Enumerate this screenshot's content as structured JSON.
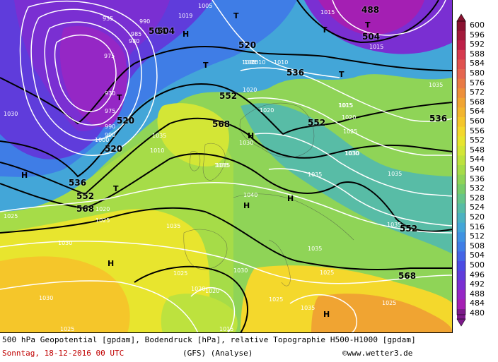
{
  "caption": {
    "description": "500 hPa Geopotential [gpdam], Bodendruck [hPa], relative Topographie H500-H1000 [gpdam]",
    "date": "Sonntag, 18-12-2016  00 UTC",
    "model": "(GFS)  (Analyse)",
    "copyright": "©www.wetter3.de"
  },
  "colors": {
    "caption_date": "#c00000",
    "geopotential_line": "#000000",
    "pressure_line": "#ffffff"
  },
  "legend": {
    "levels": [
      "600",
      "596",
      "592",
      "588",
      "584",
      "580",
      "576",
      "572",
      "568",
      "564",
      "560",
      "556",
      "552",
      "548",
      "544",
      "540",
      "536",
      "532",
      "528",
      "524",
      "520",
      "516",
      "512",
      "508",
      "504",
      "500",
      "496",
      "492",
      "488",
      "484",
      "480"
    ],
    "colors": [
      "#8a1230",
      "#a31a3b",
      "#bd2048",
      "#d63a4e",
      "#e0524f",
      "#e56650",
      "#e97a45",
      "#ed8f3a",
      "#f0a432",
      "#f2b52e",
      "#f5c62a",
      "#f4d82c",
      "#e8e52e",
      "#d3e636",
      "#bde23e",
      "#a6dc48",
      "#8fd457",
      "#78cc6a",
      "#66c58a",
      "#58bca6",
      "#4cb2c1",
      "#43a6d8",
      "#3f92e2",
      "#3f7de6",
      "#4464e6",
      "#4b4be3",
      "#5f3cdb",
      "#7a2fd2",
      "#9527c5",
      "#a41fb3",
      "#7c1a8a"
    ]
  },
  "map": {
    "geopotential_labels": [
      "504",
      "520",
      "552",
      "568",
      "536",
      "552",
      "536",
      "552",
      "568",
      "520",
      "488",
      "504",
      "536",
      "568",
      "552",
      "504",
      "520"
    ],
    "pressure_labels": [
      "935",
      "990",
      "985",
      "980",
      "975",
      "970",
      "975",
      "990",
      "990",
      "1000",
      "1030",
      "1035",
      "1010",
      "1020",
      "1005",
      "1019",
      "1005",
      "1025",
      "1035",
      "1020",
      "1010",
      "1015",
      "1020",
      "1025",
      "1030",
      "1035",
      "1035",
      "1030",
      "1035",
      "1025",
      "1025",
      "1030",
      "1030",
      "1030",
      "1025",
      "1020",
      "1025",
      "1025",
      "1015",
      "1010",
      "1015",
      "1005",
      "1015",
      "1015",
      "1035",
      "1035",
      "1030",
      "1020",
      "1040",
      "1035",
      "1035",
      "1025",
      "1020",
      "1035"
    ],
    "high_markers": [
      "H",
      "H",
      "H",
      "H",
      "H",
      "H",
      "H"
    ],
    "low_markers": [
      "T",
      "T",
      "T",
      "T",
      "T",
      "T",
      "T"
    ]
  }
}
